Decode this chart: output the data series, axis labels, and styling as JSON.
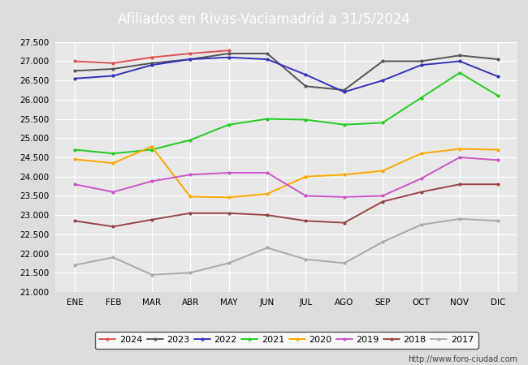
{
  "title": "Afiliados en Rivas-Vaciamadrid a 31/5/2024",
  "months": [
    "ENE",
    "FEB",
    "MAR",
    "ABR",
    "MAY",
    "JUN",
    "JUL",
    "AGO",
    "SEP",
    "OCT",
    "NOV",
    "DIC"
  ],
  "ylim": [
    21000,
    27500
  ],
  "yticks": [
    21000,
    21500,
    22000,
    22500,
    23000,
    23500,
    24000,
    24500,
    25000,
    25500,
    26000,
    26500,
    27000,
    27500
  ],
  "series": {
    "2024": {
      "color": "#e05050",
      "data": [
        27000,
        26950,
        27100,
        27200,
        27280,
        null,
        null,
        null,
        null,
        null,
        null,
        null
      ]
    },
    "2023": {
      "color": "#555555",
      "data": [
        26750,
        26800,
        26950,
        27050,
        27200,
        27200,
        26350,
        26250,
        27000,
        27000,
        27150,
        27050
      ]
    },
    "2022": {
      "color": "#3333bb",
      "data": [
        26550,
        26620,
        26900,
        27050,
        27100,
        27050,
        26650,
        26200,
        26500,
        26900,
        27000,
        26600
      ]
    },
    "2021": {
      "color": "#22cc22",
      "data": [
        24700,
        24600,
        24700,
        24950,
        25350,
        25500,
        25480,
        25350,
        25400,
        26050,
        26700,
        26100
      ]
    },
    "2020": {
      "color": "#ffaa00",
      "data": [
        24450,
        24350,
        24780,
        23480,
        23460,
        23550,
        24000,
        24050,
        24150,
        24600,
        24720,
        24700
      ]
    },
    "2019": {
      "color": "#cc55cc",
      "data": [
        23800,
        23600,
        23880,
        24050,
        24100,
        24100,
        23500,
        23470,
        23500,
        23950,
        24500,
        24430
      ]
    },
    "2018": {
      "color": "#994444",
      "data": [
        22850,
        22700,
        22880,
        23050,
        23050,
        23000,
        22850,
        22800,
        23350,
        23600,
        23800,
        23800
      ]
    },
    "2017": {
      "color": "#aaaaaa",
      "data": [
        21700,
        21900,
        21450,
        21500,
        21750,
        22150,
        21850,
        21750,
        22300,
        22750,
        22900,
        22850
      ]
    }
  },
  "legend_order": [
    "2024",
    "2023",
    "2022",
    "2021",
    "2020",
    "2019",
    "2018",
    "2017"
  ],
  "watermark": "http://www.foro-ciudad.com",
  "background_color": "#dddddd",
  "plot_bg": "#e8e8e8",
  "title_bg": "#5588cc",
  "title_color": "white"
}
